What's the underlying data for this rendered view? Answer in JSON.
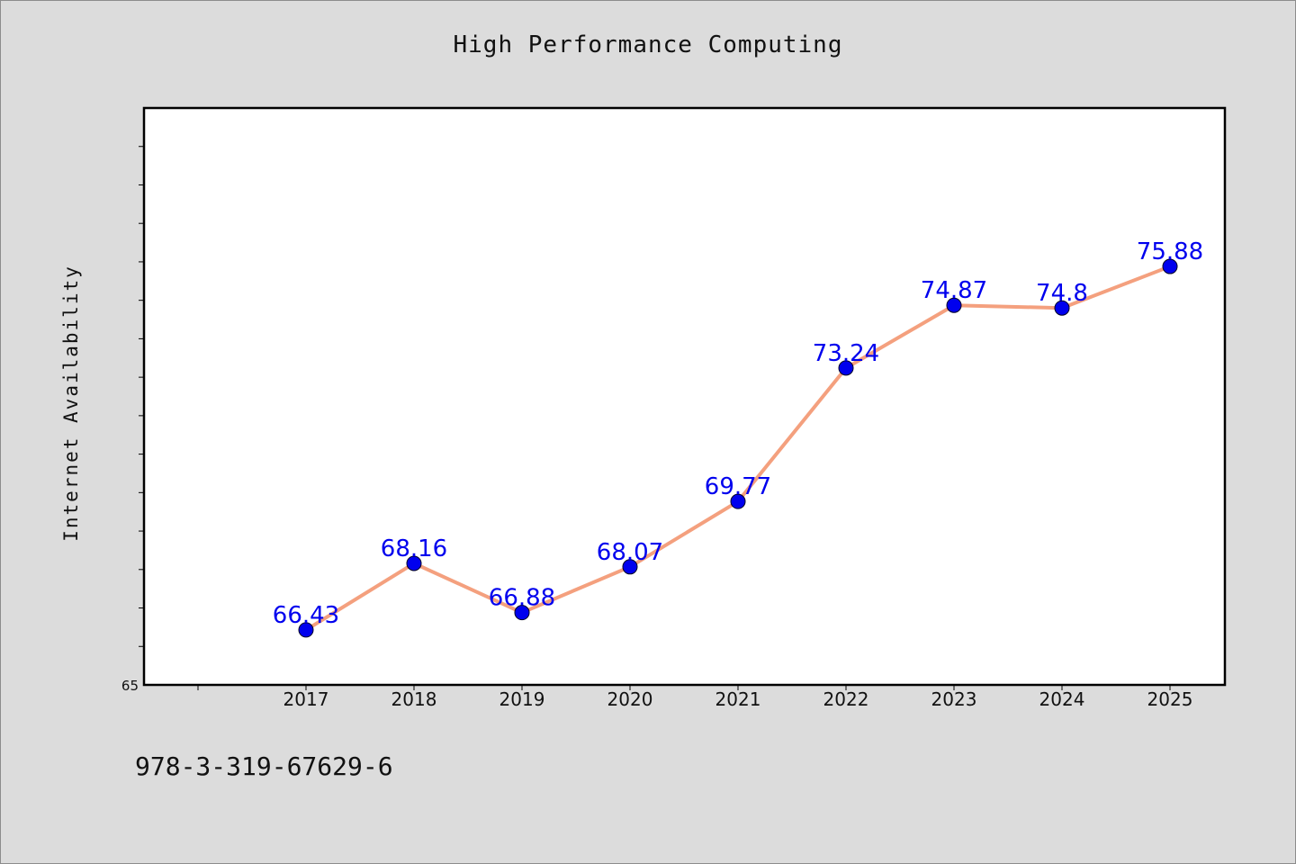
{
  "chart_data": {
    "type": "line",
    "title": "High Performance Computing",
    "xlabel": "",
    "ylabel": "Internet Availability",
    "categories": [
      "2017",
      "2018",
      "2019",
      "2020",
      "2021",
      "2022",
      "2023",
      "2024",
      "2025"
    ],
    "series": [
      {
        "values": [
          66.43,
          68.16,
          66.88,
          68.07,
          69.77,
          73.24,
          74.87,
          74.8,
          75.88
        ]
      }
    ],
    "ylim": [
      65,
      80
    ],
    "y_tick_labels_shown": [
      "65"
    ],
    "data_labels": [
      "66.43",
      "68.16",
      "66.88",
      "68.07",
      "69.77",
      "73.24",
      "74.87",
      "74.8",
      "75.88"
    ],
    "grid": false,
    "legend": "none"
  },
  "annotation": {
    "isbn": "978-3-319-67629-6"
  },
  "colors": {
    "line": "#f4a07e",
    "marker": "#0000ee",
    "data_label": "#0000ee",
    "background": "#dcdcdc",
    "plot_area": "#ffffff"
  }
}
